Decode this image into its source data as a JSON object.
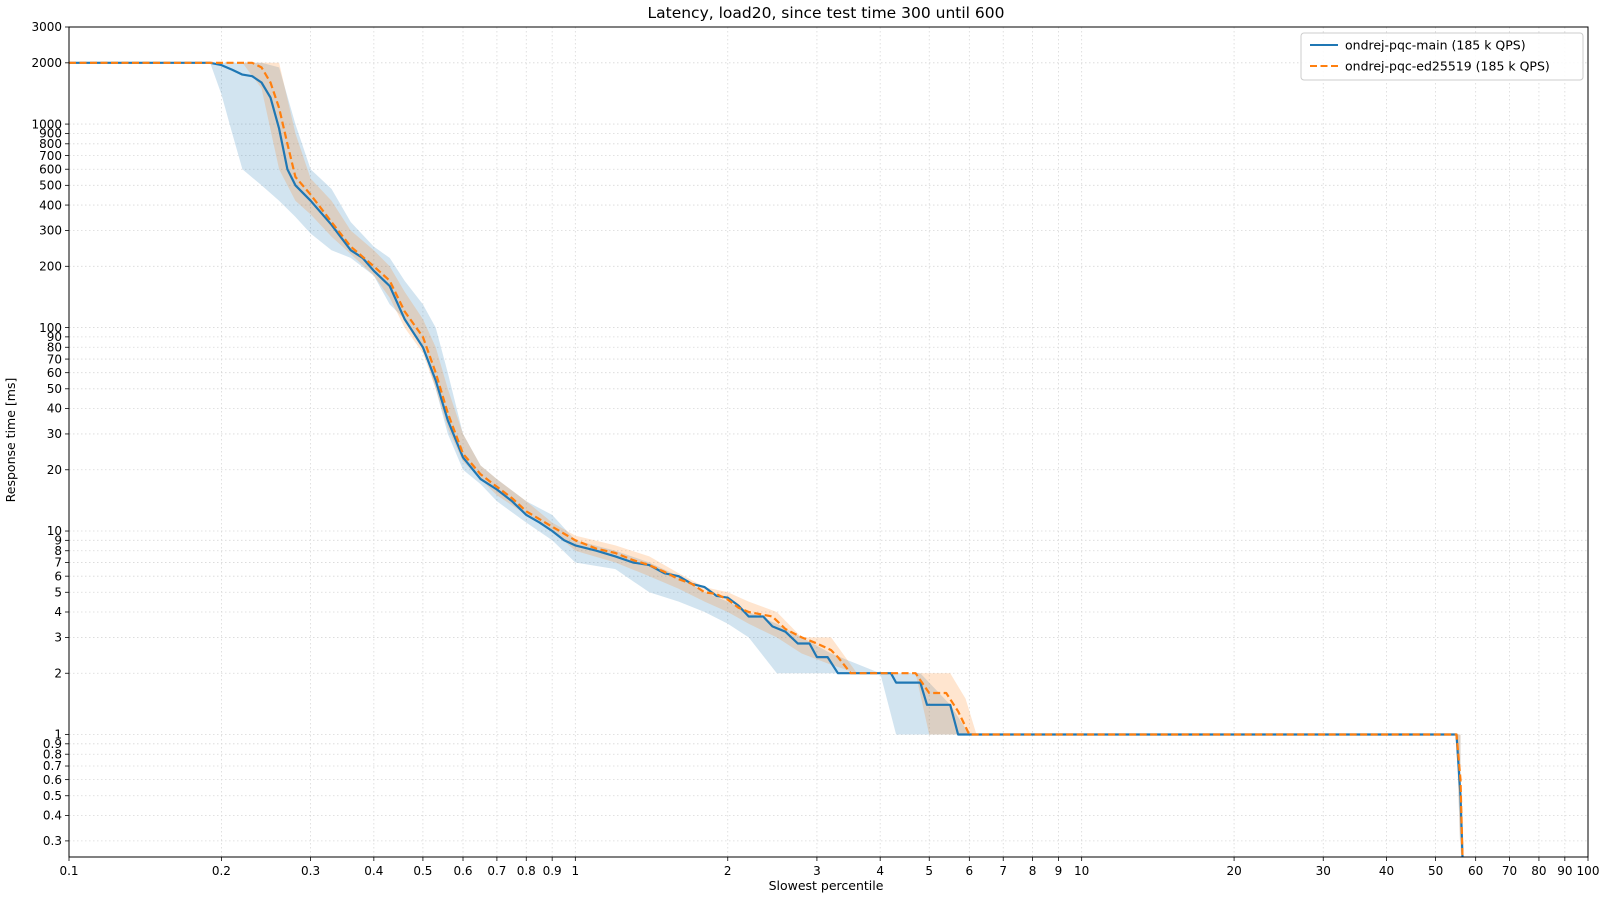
{
  "chart_data": {
    "type": "line",
    "title": "Latency, load20, since test time 300 until 600",
    "xlabel": "Slowest percentile",
    "ylabel": "Response time [ms]",
    "x_scale": "log",
    "y_scale": "log",
    "xlim": [
      0.1,
      100
    ],
    "ylim": [
      0.25,
      3000
    ],
    "grid": true,
    "legend_position": "top-right",
    "x_ticks": [
      {
        "v": 0.1,
        "label": "0.1"
      },
      {
        "v": 0.2,
        "label": "0.2"
      },
      {
        "v": 0.3,
        "label": "0.3"
      },
      {
        "v": 0.4,
        "label": "0.4"
      },
      {
        "v": 0.5,
        "label": "0.5"
      },
      {
        "v": 0.6,
        "label": "0.6"
      },
      {
        "v": 0.7,
        "label": "0.7"
      },
      {
        "v": 0.8,
        "label": "0.8"
      },
      {
        "v": 0.9,
        "label": "0.9"
      },
      {
        "v": 1,
        "label": "1"
      },
      {
        "v": 2,
        "label": "2"
      },
      {
        "v": 3,
        "label": "3"
      },
      {
        "v": 4,
        "label": "4"
      },
      {
        "v": 5,
        "label": "5"
      },
      {
        "v": 6,
        "label": "6"
      },
      {
        "v": 7,
        "label": "7"
      },
      {
        "v": 8,
        "label": "8"
      },
      {
        "v": 9,
        "label": "9"
      },
      {
        "v": 10,
        "label": "10"
      },
      {
        "v": 20,
        "label": "20"
      },
      {
        "v": 30,
        "label": "30"
      },
      {
        "v": 40,
        "label": "40"
      },
      {
        "v": 50,
        "label": "50"
      },
      {
        "v": 60,
        "label": "60"
      },
      {
        "v": 70,
        "label": "70"
      },
      {
        "v": 80,
        "label": "80"
      },
      {
        "v": 90,
        "label": "90"
      },
      {
        "v": 100,
        "label": "100"
      }
    ],
    "y_ticks": [
      {
        "v": 0.3,
        "label": "0.3"
      },
      {
        "v": 0.4,
        "label": "0.4"
      },
      {
        "v": 0.5,
        "label": "0.5"
      },
      {
        "v": 0.6,
        "label": "0.6"
      },
      {
        "v": 0.7,
        "label": "0.7"
      },
      {
        "v": 0.8,
        "label": "0.8"
      },
      {
        "v": 0.9,
        "label": "0.9"
      },
      {
        "v": 1,
        "label": "1"
      },
      {
        "v": 2,
        "label": "2"
      },
      {
        "v": 3,
        "label": "3"
      },
      {
        "v": 4,
        "label": "4"
      },
      {
        "v": 5,
        "label": "5"
      },
      {
        "v": 6,
        "label": "6"
      },
      {
        "v": 7,
        "label": "7"
      },
      {
        "v": 8,
        "label": "8"
      },
      {
        "v": 9,
        "label": "9"
      },
      {
        "v": 10,
        "label": "10"
      },
      {
        "v": 20,
        "label": "20"
      },
      {
        "v": 30,
        "label": "30"
      },
      {
        "v": 40,
        "label": "40"
      },
      {
        "v": 50,
        "label": "50"
      },
      {
        "v": 60,
        "label": "60"
      },
      {
        "v": 70,
        "label": "70"
      },
      {
        "v": 80,
        "label": "80"
      },
      {
        "v": 90,
        "label": "90"
      },
      {
        "v": 100,
        "label": "100"
      },
      {
        "v": 200,
        "label": "200"
      },
      {
        "v": 300,
        "label": "300"
      },
      {
        "v": 400,
        "label": "400"
      },
      {
        "v": 500,
        "label": "500"
      },
      {
        "v": 600,
        "label": "600"
      },
      {
        "v": 700,
        "label": "700"
      },
      {
        "v": 800,
        "label": "800"
      },
      {
        "v": 900,
        "label": "900"
      },
      {
        "v": 1000,
        "label": "1000"
      },
      {
        "v": 2000,
        "label": "2000"
      },
      {
        "v": 3000,
        "label": "3000"
      }
    ],
    "series": [
      {
        "name": "ondrej-pqc-main (185 k QPS)",
        "color": "#1f77b4",
        "style": "solid",
        "points": [
          [
            0.1,
            2000
          ],
          [
            0.19,
            2000
          ],
          [
            0.2,
            1950
          ],
          [
            0.21,
            1850
          ],
          [
            0.22,
            1750
          ],
          [
            0.23,
            1720
          ],
          [
            0.24,
            1600
          ],
          [
            0.25,
            1350
          ],
          [
            0.26,
            950
          ],
          [
            0.27,
            600
          ],
          [
            0.28,
            500
          ],
          [
            0.3,
            420
          ],
          [
            0.33,
            320
          ],
          [
            0.36,
            240
          ],
          [
            0.38,
            220
          ],
          [
            0.4,
            190
          ],
          [
            0.43,
            160
          ],
          [
            0.46,
            110
          ],
          [
            0.5,
            80
          ],
          [
            0.53,
            55
          ],
          [
            0.56,
            35
          ],
          [
            0.6,
            23
          ],
          [
            0.65,
            18
          ],
          [
            0.7,
            16
          ],
          [
            0.75,
            14
          ],
          [
            0.8,
            12
          ],
          [
            0.85,
            11
          ],
          [
            0.9,
            10
          ],
          [
            0.95,
            9
          ],
          [
            1.0,
            8.5
          ],
          [
            1.1,
            8
          ],
          [
            1.2,
            7.5
          ],
          [
            1.3,
            7
          ],
          [
            1.4,
            6.8
          ],
          [
            1.5,
            6.2
          ],
          [
            1.6,
            6.0
          ],
          [
            1.7,
            5.5
          ],
          [
            1.8,
            5.3
          ],
          [
            1.9,
            4.8
          ],
          [
            2.0,
            4.7
          ],
          [
            2.1,
            4.3
          ],
          [
            2.2,
            3.8
          ],
          [
            2.35,
            3.8
          ],
          [
            2.45,
            3.4
          ],
          [
            2.6,
            3.2
          ],
          [
            2.75,
            2.8
          ],
          [
            2.9,
            2.8
          ],
          [
            3.0,
            2.4
          ],
          [
            3.15,
            2.4
          ],
          [
            3.3,
            2.0
          ],
          [
            4.2,
            2.0
          ],
          [
            4.3,
            1.8
          ],
          [
            4.8,
            1.8
          ],
          [
            4.95,
            1.4
          ],
          [
            5.5,
            1.4
          ],
          [
            5.7,
            1.0
          ],
          [
            55.0,
            1.0
          ],
          [
            56.0,
            0.5
          ],
          [
            56.5,
            0.25
          ]
        ],
        "band": [
          [
            0.19,
            2000,
            2000
          ],
          [
            0.2,
            1400,
            2000
          ],
          [
            0.21,
            900,
            2000
          ],
          [
            0.22,
            600,
            2000
          ],
          [
            0.24,
            500,
            2000
          ],
          [
            0.26,
            420,
            1900
          ],
          [
            0.28,
            350,
            1000
          ],
          [
            0.3,
            290,
            600
          ],
          [
            0.33,
            240,
            480
          ],
          [
            0.36,
            220,
            330
          ],
          [
            0.4,
            180,
            250
          ],
          [
            0.43,
            130,
            220
          ],
          [
            0.46,
            110,
            170
          ],
          [
            0.5,
            80,
            130
          ],
          [
            0.53,
            50,
            100
          ],
          [
            0.56,
            30,
            60
          ],
          [
            0.6,
            20,
            30
          ],
          [
            0.65,
            17,
            21
          ],
          [
            0.7,
            14,
            18
          ],
          [
            0.8,
            11,
            14
          ],
          [
            0.9,
            9,
            12
          ],
          [
            1.0,
            7,
            9
          ],
          [
            1.2,
            6.5,
            8
          ],
          [
            1.4,
            5,
            7
          ],
          [
            1.6,
            4.5,
            6
          ],
          [
            1.8,
            4,
            5
          ],
          [
            2.0,
            3.5,
            4.5
          ],
          [
            2.2,
            3,
            4
          ],
          [
            2.5,
            2,
            3.5
          ],
          [
            2.8,
            2,
            3
          ],
          [
            3.2,
            2,
            2.5
          ],
          [
            4.0,
            2,
            2
          ],
          [
            4.3,
            1,
            2
          ],
          [
            4.8,
            1,
            2
          ],
          [
            5.5,
            1,
            1.4
          ],
          [
            6.0,
            1,
            1
          ],
          [
            55.0,
            1,
            1
          ],
          [
            56.0,
            0.25,
            1
          ]
        ]
      },
      {
        "name": "ondrej-pqc-ed25519 (185 k QPS)",
        "color": "#ff7f0e",
        "style": "dashed",
        "points": [
          [
            0.1,
            2000
          ],
          [
            0.2,
            2000
          ],
          [
            0.23,
            2000
          ],
          [
            0.24,
            1900
          ],
          [
            0.25,
            1600
          ],
          [
            0.26,
            1200
          ],
          [
            0.27,
            800
          ],
          [
            0.28,
            550
          ],
          [
            0.3,
            450
          ],
          [
            0.33,
            330
          ],
          [
            0.36,
            250
          ],
          [
            0.4,
            200
          ],
          [
            0.43,
            170
          ],
          [
            0.46,
            120
          ],
          [
            0.5,
            90
          ],
          [
            0.53,
            60
          ],
          [
            0.56,
            38
          ],
          [
            0.6,
            24
          ],
          [
            0.65,
            19
          ],
          [
            0.7,
            16.5
          ],
          [
            0.75,
            14.5
          ],
          [
            0.8,
            12.5
          ],
          [
            0.9,
            10.5
          ],
          [
            1.0,
            9
          ],
          [
            1.1,
            8.2
          ],
          [
            1.2,
            7.8
          ],
          [
            1.3,
            7.2
          ],
          [
            1.4,
            6.8
          ],
          [
            1.5,
            6.3
          ],
          [
            1.6,
            5.8
          ],
          [
            1.7,
            5.5
          ],
          [
            1.8,
            5.0
          ],
          [
            1.9,
            4.9
          ],
          [
            2.0,
            4.6
          ],
          [
            2.1,
            4.2
          ],
          [
            2.2,
            4.0
          ],
          [
            2.45,
            3.8
          ],
          [
            2.6,
            3.3
          ],
          [
            2.8,
            3.0
          ],
          [
            3.0,
            2.8
          ],
          [
            3.2,
            2.6
          ],
          [
            3.3,
            2.4
          ],
          [
            3.5,
            2.0
          ],
          [
            4.7,
            2.0
          ],
          [
            5.0,
            1.6
          ],
          [
            5.4,
            1.6
          ],
          [
            5.7,
            1.3
          ],
          [
            6.0,
            1.0
          ],
          [
            55.0,
            1.0
          ],
          [
            56.0,
            0.6
          ],
          [
            56.5,
            0.25
          ]
        ],
        "band": [
          [
            0.22,
            2000,
            2000
          ],
          [
            0.24,
            1500,
            2000
          ],
          [
            0.26,
            600,
            2000
          ],
          [
            0.28,
            420,
            900
          ],
          [
            0.3,
            360,
            540
          ],
          [
            0.33,
            280,
            420
          ],
          [
            0.36,
            230,
            300
          ],
          [
            0.4,
            180,
            240
          ],
          [
            0.43,
            140,
            200
          ],
          [
            0.46,
            100,
            150
          ],
          [
            0.5,
            75,
            110
          ],
          [
            0.53,
            50,
            80
          ],
          [
            0.56,
            32,
            50
          ],
          [
            0.6,
            22,
            30
          ],
          [
            0.65,
            18,
            21
          ],
          [
            0.7,
            15,
            18
          ],
          [
            0.8,
            12,
            14
          ],
          [
            0.9,
            10,
            11
          ],
          [
            1.0,
            8,
            9.5
          ],
          [
            1.2,
            7,
            8.5
          ],
          [
            1.4,
            6,
            7.5
          ],
          [
            1.6,
            5.2,
            6.2
          ],
          [
            1.8,
            4.5,
            5.3
          ],
          [
            2.0,
            4,
            5
          ],
          [
            2.2,
            3.5,
            4.5
          ],
          [
            2.5,
            3,
            4
          ],
          [
            2.8,
            2.5,
            3
          ],
          [
            3.2,
            2.2,
            3
          ],
          [
            3.6,
            2,
            2
          ],
          [
            4.7,
            2,
            2
          ],
          [
            5.0,
            1,
            2
          ],
          [
            5.5,
            1,
            2
          ],
          [
            5.9,
            1,
            1.5
          ],
          [
            6.2,
            1,
            1
          ],
          [
            55.0,
            1,
            1
          ],
          [
            56.0,
            0.25,
            1
          ]
        ]
      }
    ]
  }
}
